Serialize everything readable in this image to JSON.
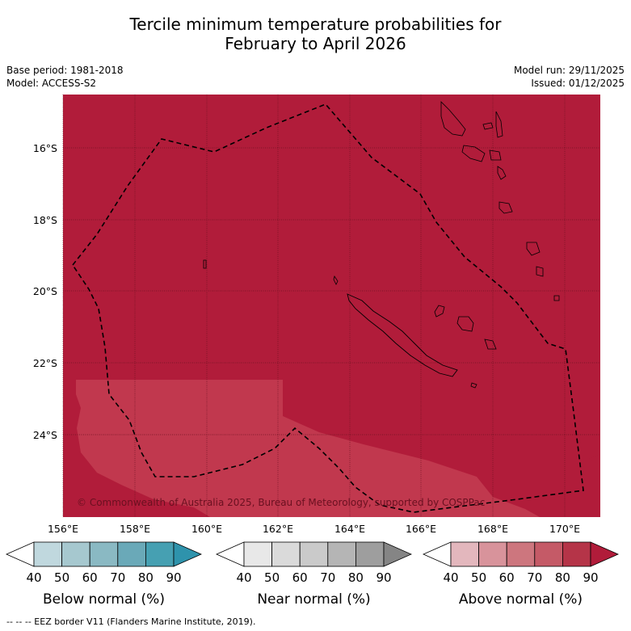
{
  "title_line1": "Tercile minimum temperature probabilities for",
  "title_line2": "February to April 2026",
  "base_period": "Base period: 1981-2018",
  "model": "Model: ACCESS-S2",
  "model_run": "Model run: 29/11/2025",
  "issued": "Issued: 01/12/2025",
  "copyright": "© Commonwealth of Australia 2025, Bureau of Meteorology, supported by COSPPac",
  "footnote": "-- -- -- EEZ border V11 (Flanders Marine Institute, 2019).",
  "map": {
    "lat_labels": [
      "16°S",
      "18°S",
      "20°S",
      "22°S",
      "24°S"
    ],
    "lon_labels": [
      "156°E",
      "158°E",
      "160°E",
      "162°E",
      "164°E",
      "166°E",
      "168°E",
      "170°E"
    ],
    "background_category": "Above normal",
    "background_level": "80-90",
    "lighter_region_level": "70-80",
    "colors": {
      "above_80_90": "#b11c3a",
      "above_70_80": "#c1384e",
      "grid": "#6a1020",
      "eez": "#000000",
      "coast": "#000000"
    }
  },
  "legends": [
    {
      "label": "Below normal (%)",
      "ticks": [
        "40",
        "50",
        "60",
        "70",
        "80",
        "90"
      ],
      "colors": [
        "#ffffff",
        "#c0d8de",
        "#a6c8cf",
        "#8ab9c3",
        "#6aa9b8",
        "#46a0b2",
        "#2e93ac"
      ]
    },
    {
      "label": "Near normal (%)",
      "ticks": [
        "40",
        "50",
        "60",
        "70",
        "80",
        "90"
      ],
      "colors": [
        "#ffffff",
        "#e8e8e8",
        "#dadada",
        "#cacaca",
        "#b5b5b5",
        "#9e9e9e",
        "#858585"
      ]
    },
    {
      "label": "Above normal (%)",
      "ticks": [
        "40",
        "50",
        "60",
        "70",
        "80",
        "90"
      ],
      "colors": [
        "#ffffff",
        "#e3b7bd",
        "#d8939b",
        "#cd767e",
        "#c55a67",
        "#b53448",
        "#b11c3a"
      ]
    }
  ]
}
